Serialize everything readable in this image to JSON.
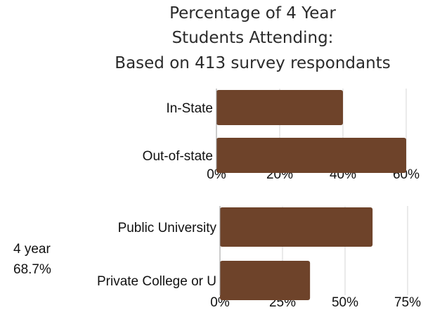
{
  "title_lines": [
    "Percentage of 4 Year",
    "Students Attending:",
    "Based on 413 survey respondants"
  ],
  "side_note": {
    "label": "4 year",
    "value": "68.7%"
  },
  "colors": {
    "bar": "#6e432a",
    "grid": "#d6d6d6"
  },
  "chart_data": [
    {
      "type": "bar",
      "orientation": "horizontal",
      "categories": [
        "In-State",
        "Out-of-state"
      ],
      "values": [
        40,
        60
      ],
      "xlim": [
        0,
        60
      ],
      "xticks": [
        "0%",
        "20%",
        "40%",
        "60%"
      ],
      "grid": true
    },
    {
      "type": "bar",
      "orientation": "horizontal",
      "categories": [
        "Public University",
        "Private College or U"
      ],
      "values": [
        61,
        36
      ],
      "xlim": [
        0,
        75
      ],
      "xticks": [
        "0%",
        "25%",
        "50%",
        "75%"
      ],
      "grid": true
    }
  ]
}
